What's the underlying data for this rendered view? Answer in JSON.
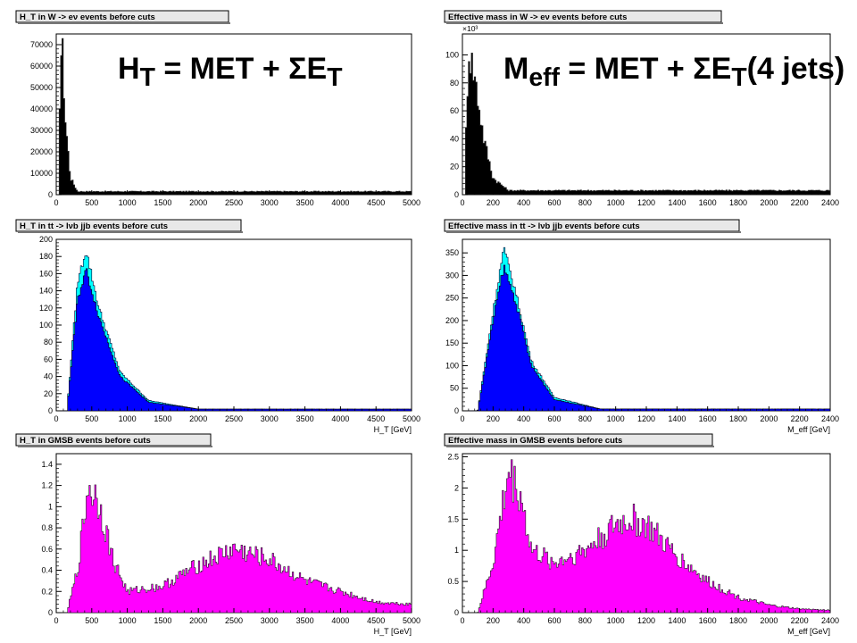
{
  "colors": {
    "w_fill": "#000000",
    "ttbar_fill": "#0000ff",
    "ttbar_outer": "#00ffff",
    "gmsb_fill": "#ff00ff",
    "frame": "#000000",
    "title_box": "#e8e8e8"
  },
  "overlays": {
    "ht": {
      "main": "H",
      "sub": "T",
      "rest": " = MET + ΣE",
      "sub2": "T",
      "tail": ""
    },
    "meff": {
      "main": "M",
      "sub": "eff",
      "rest": " = MET + ΣE",
      "sub2": "T",
      "tail": "(4 jets)"
    }
  },
  "chart_data": [
    {
      "type": "area",
      "title": "H_T in W -> eν events before cuts",
      "xlabel": "",
      "ylabel": "",
      "xlim": [
        0,
        5000
      ],
      "ylim": [
        0,
        75000
      ],
      "xticks": [
        0,
        500,
        1000,
        1500,
        2000,
        2500,
        3000,
        3500,
        4000,
        4500,
        5000
      ],
      "yticks": [
        0,
        10000,
        20000,
        30000,
        40000,
        50000,
        60000,
        70000
      ],
      "y_multiplier": "",
      "series": [
        {
          "role": "black-fill",
          "peaks": [
            {
              "x": 40,
              "y": 30000
            },
            {
              "x": 60,
              "y": 62000
            },
            {
              "x": 80,
              "y": 72000
            },
            {
              "x": 100,
              "y": 58000
            },
            {
              "x": 130,
              "y": 35000
            },
            {
              "x": 200,
              "y": 8000
            },
            {
              "x": 300,
              "y": 1500
            }
          ]
        }
      ]
    },
    {
      "type": "area",
      "title": "Effective mass in W -> eν events before cuts",
      "xlabel": "",
      "ylabel": "",
      "xlim": [
        0,
        2400
      ],
      "ylim": [
        0,
        115
      ],
      "xticks": [
        0,
        200,
        400,
        600,
        800,
        1000,
        1200,
        1400,
        1600,
        1800,
        2000,
        2200,
        2400
      ],
      "yticks": [
        0,
        20,
        40,
        60,
        80,
        100
      ],
      "y_multiplier": "×10³",
      "series": [
        {
          "role": "black-fill",
          "peaks": [
            {
              "x": 20,
              "y": 30
            },
            {
              "x": 40,
              "y": 105
            },
            {
              "x": 60,
              "y": 95
            },
            {
              "x": 80,
              "y": 85
            },
            {
              "x": 100,
              "y": 70
            },
            {
              "x": 140,
              "y": 40
            },
            {
              "x": 200,
              "y": 12
            },
            {
              "x": 300,
              "y": 3
            }
          ]
        }
      ]
    },
    {
      "type": "area",
      "title": "H_T in tt -> lνb jjb events before cuts",
      "xlabel": "H_T [GeV]",
      "ylabel": "",
      "xlim": [
        0,
        5000
      ],
      "ylim": [
        0,
        200
      ],
      "xticks": [
        0,
        500,
        1000,
        1500,
        2000,
        2500,
        3000,
        3500,
        4000,
        4500,
        5000
      ],
      "yticks": [
        0,
        20,
        40,
        60,
        80,
        100,
        120,
        140,
        160,
        180,
        200
      ],
      "y_multiplier": "",
      "series": [
        {
          "role": "outer",
          "peaks": [
            {
              "x": 150,
              "y": 0
            },
            {
              "x": 300,
              "y": 150
            },
            {
              "x": 420,
              "y": 188
            },
            {
              "x": 600,
              "y": 120
            },
            {
              "x": 900,
              "y": 45
            },
            {
              "x": 1300,
              "y": 12
            },
            {
              "x": 2000,
              "y": 2
            }
          ]
        },
        {
          "role": "inner",
          "peaks": [
            {
              "x": 150,
              "y": 0
            },
            {
              "x": 300,
              "y": 130
            },
            {
              "x": 420,
              "y": 165
            },
            {
              "x": 600,
              "y": 110
            },
            {
              "x": 900,
              "y": 40
            },
            {
              "x": 1300,
              "y": 10
            },
            {
              "x": 2000,
              "y": 2
            }
          ]
        }
      ]
    },
    {
      "type": "area",
      "title": "Effective mass in tt -> lνb jjb events before cuts",
      "xlabel": "M_eff [GeV]",
      "ylabel": "",
      "xlim": [
        0,
        2400
      ],
      "ylim": [
        0,
        380
      ],
      "xticks": [
        0,
        200,
        400,
        600,
        800,
        1000,
        1200,
        1400,
        1600,
        1800,
        2000,
        2200,
        2400
      ],
      "yticks": [
        0,
        50,
        100,
        150,
        200,
        250,
        300,
        350
      ],
      "y_multiplier": "",
      "series": [
        {
          "role": "outer",
          "peaks": [
            {
              "x": 100,
              "y": 0
            },
            {
              "x": 200,
              "y": 220
            },
            {
              "x": 270,
              "y": 360
            },
            {
              "x": 350,
              "y": 260
            },
            {
              "x": 450,
              "y": 110
            },
            {
              "x": 600,
              "y": 30
            },
            {
              "x": 900,
              "y": 4
            }
          ]
        },
        {
          "role": "inner",
          "peaks": [
            {
              "x": 100,
              "y": 0
            },
            {
              "x": 200,
              "y": 200
            },
            {
              "x": 270,
              "y": 320
            },
            {
              "x": 350,
              "y": 240
            },
            {
              "x": 450,
              "y": 100
            },
            {
              "x": 600,
              "y": 25
            },
            {
              "x": 900,
              "y": 4
            }
          ]
        }
      ]
    },
    {
      "type": "area",
      "title": "H_T in GMSB events before cuts",
      "xlabel": "H_T [GeV]",
      "ylabel": "",
      "xlim": [
        0,
        5000
      ],
      "ylim": [
        0,
        1.5
      ],
      "xticks": [
        0,
        500,
        1000,
        1500,
        2000,
        2500,
        3000,
        3500,
        4000,
        4500,
        5000
      ],
      "yticks": [
        0,
        0.2,
        0.4,
        0.6,
        0.8,
        1.0,
        1.2,
        1.4
      ],
      "y_multiplier": "",
      "series": [
        {
          "role": "magenta-fill",
          "peaks": [
            {
              "x": 150,
              "y": 0
            },
            {
              "x": 300,
              "y": 0.4
            },
            {
              "x": 450,
              "y": 1.2
            },
            {
              "x": 600,
              "y": 1.05
            },
            {
              "x": 800,
              "y": 0.5
            },
            {
              "x": 1000,
              "y": 0.2
            },
            {
              "x": 1500,
              "y": 0.25
            },
            {
              "x": 2000,
              "y": 0.45
            },
            {
              "x": 2500,
              "y": 0.6
            },
            {
              "x": 3000,
              "y": 0.5
            },
            {
              "x": 3500,
              "y": 0.3
            },
            {
              "x": 4000,
              "y": 0.2
            },
            {
              "x": 4500,
              "y": 0.1
            },
            {
              "x": 5000,
              "y": 0.08
            }
          ]
        }
      ]
    },
    {
      "type": "area",
      "title": "Effective mass in GMSB events before cuts",
      "xlabel": "M_eff [GeV]",
      "ylabel": "",
      "xlim": [
        0,
        2400
      ],
      "ylim": [
        0,
        2.55
      ],
      "xticks": [
        0,
        200,
        400,
        600,
        800,
        1000,
        1200,
        1400,
        1600,
        1800,
        2000,
        2200,
        2400
      ],
      "yticks": [
        0,
        0.5,
        1,
        1.5,
        2,
        2.5
      ],
      "y_multiplier": "",
      "series": [
        {
          "role": "magenta-fill",
          "peaks": [
            {
              "x": 100,
              "y": 0
            },
            {
              "x": 200,
              "y": 0.8
            },
            {
              "x": 300,
              "y": 2.25
            },
            {
              "x": 380,
              "y": 1.9
            },
            {
              "x": 450,
              "y": 1.0
            },
            {
              "x": 600,
              "y": 0.8
            },
            {
              "x": 800,
              "y": 1.0
            },
            {
              "x": 1000,
              "y": 1.4
            },
            {
              "x": 1100,
              "y": 1.5
            },
            {
              "x": 1200,
              "y": 1.4
            },
            {
              "x": 1400,
              "y": 0.9
            },
            {
              "x": 1600,
              "y": 0.5
            },
            {
              "x": 1800,
              "y": 0.25
            },
            {
              "x": 2000,
              "y": 0.12
            },
            {
              "x": 2200,
              "y": 0.06
            },
            {
              "x": 2400,
              "y": 0.04
            }
          ]
        }
      ]
    }
  ]
}
